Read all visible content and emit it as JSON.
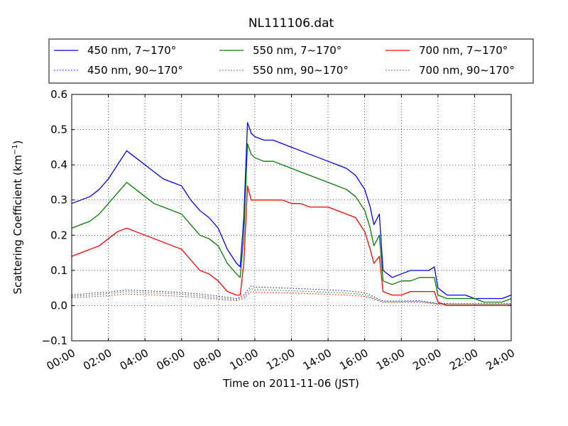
{
  "chart_data": {
    "type": "line",
    "title": "NL111106.dat",
    "xlabel": "Time on 2011-11-06 (JST)",
    "ylabel": "Scattering Coefficient (km",
    "ylabel_sup": "−1",
    "ylabel_close": ")",
    "xlim": [
      0,
      24
    ],
    "ylim": [
      -0.1,
      0.6
    ],
    "grid": true,
    "legend_position": "top",
    "x_ticks": [
      0,
      2,
      4,
      6,
      8,
      10,
      12,
      14,
      16,
      18,
      20,
      22,
      24
    ],
    "x_tick_labels": [
      "00:00",
      "02:00",
      "04:00",
      "06:00",
      "08:00",
      "10:00",
      "12:00",
      "14:00",
      "16:00",
      "18:00",
      "20:00",
      "22:00",
      "24:00"
    ],
    "y_ticks": [
      -0.1,
      0.0,
      0.1,
      0.2,
      0.3,
      0.4,
      0.5,
      0.6
    ],
    "y_tick_labels": [
      "−0.1",
      "0.0",
      "0.1",
      "0.2",
      "0.3",
      "0.4",
      "0.5",
      "0.6"
    ],
    "series": [
      {
        "name": "450 nm, 7∼170°",
        "color": "#0000ff",
        "style": "solid",
        "x": [
          0,
          0.5,
          1,
          1.5,
          2,
          2.5,
          3,
          3.5,
          4,
          4.5,
          5,
          5.5,
          6,
          6.5,
          7,
          7.5,
          8,
          8.5,
          9,
          9.2,
          9.4,
          9.6,
          9.8,
          10,
          10.5,
          11,
          11.5,
          12,
          12.5,
          13,
          13.5,
          14,
          14.5,
          15,
          15.5,
          16,
          16.3,
          16.5,
          16.8,
          17,
          17.5,
          18,
          18.5,
          19,
          19.5,
          19.8,
          20,
          20.5,
          21,
          21.5,
          22,
          22.5,
          23,
          23.5,
          24
        ],
        "y": [
          0.29,
          0.3,
          0.31,
          0.33,
          0.36,
          0.4,
          0.44,
          0.42,
          0.4,
          0.38,
          0.36,
          0.35,
          0.34,
          0.3,
          0.27,
          0.25,
          0.22,
          0.16,
          0.12,
          0.11,
          0.25,
          0.52,
          0.49,
          0.48,
          0.47,
          0.47,
          0.46,
          0.45,
          0.44,
          0.43,
          0.42,
          0.41,
          0.4,
          0.39,
          0.37,
          0.33,
          0.28,
          0.23,
          0.26,
          0.1,
          0.08,
          0.09,
          0.1,
          0.1,
          0.1,
          0.11,
          0.05,
          0.03,
          0.03,
          0.03,
          0.02,
          0.02,
          0.02,
          0.02,
          0.03
        ]
      },
      {
        "name": "550 nm, 7∼170°",
        "color": "#008000",
        "style": "solid",
        "x": [
          0,
          0.5,
          1,
          1.5,
          2,
          2.5,
          3,
          3.5,
          4,
          4.5,
          5,
          5.5,
          6,
          6.5,
          7,
          7.5,
          8,
          8.5,
          9,
          9.2,
          9.4,
          9.6,
          9.8,
          10,
          10.5,
          11,
          11.5,
          12,
          12.5,
          13,
          13.5,
          14,
          14.5,
          15,
          15.5,
          16,
          16.3,
          16.5,
          16.8,
          17,
          17.5,
          18,
          18.5,
          19,
          19.5,
          19.8,
          20,
          20.5,
          21,
          21.5,
          22,
          22.5,
          23,
          23.5,
          24
        ],
        "y": [
          0.22,
          0.23,
          0.24,
          0.26,
          0.29,
          0.32,
          0.35,
          0.33,
          0.31,
          0.29,
          0.28,
          0.27,
          0.26,
          0.23,
          0.2,
          0.19,
          0.17,
          0.12,
          0.09,
          0.08,
          0.2,
          0.46,
          0.43,
          0.42,
          0.41,
          0.41,
          0.4,
          0.39,
          0.38,
          0.37,
          0.36,
          0.35,
          0.34,
          0.33,
          0.31,
          0.27,
          0.22,
          0.17,
          0.2,
          0.07,
          0.06,
          0.07,
          0.07,
          0.08,
          0.08,
          0.08,
          0.03,
          0.02,
          0.02,
          0.02,
          0.02,
          0.01,
          0.01,
          0.01,
          0.02
        ]
      },
      {
        "name": "700 nm, 7∼170°",
        "color": "#ff0000",
        "style": "solid",
        "x": [
          0,
          0.5,
          1,
          1.5,
          2,
          2.5,
          3,
          3.5,
          4,
          4.5,
          5,
          5.5,
          6,
          6.5,
          7,
          7.5,
          8,
          8.5,
          9,
          9.2,
          9.4,
          9.6,
          9.8,
          10,
          10.5,
          11,
          11.5,
          12,
          12.5,
          13,
          13.5,
          14,
          14.5,
          15,
          15.5,
          16,
          16.3,
          16.5,
          16.8,
          17,
          17.5,
          18,
          18.5,
          19,
          19.5,
          19.8,
          20,
          20.5,
          21,
          21.5,
          22,
          22.5,
          23,
          23.5,
          24
        ],
        "y": [
          0.14,
          0.15,
          0.16,
          0.17,
          0.19,
          0.21,
          0.22,
          0.21,
          0.2,
          0.19,
          0.18,
          0.17,
          0.16,
          0.13,
          0.1,
          0.09,
          0.07,
          0.04,
          0.03,
          0.03,
          0.12,
          0.34,
          0.3,
          0.3,
          0.3,
          0.3,
          0.3,
          0.29,
          0.29,
          0.28,
          0.28,
          0.28,
          0.27,
          0.26,
          0.25,
          0.21,
          0.16,
          0.12,
          0.14,
          0.04,
          0.03,
          0.03,
          0.04,
          0.04,
          0.04,
          0.04,
          0.01,
          0.0,
          0.0,
          0.0,
          0.0,
          0.0,
          0.0,
          0.0,
          0.0
        ]
      },
      {
        "name": "450 nm, 90∼170°",
        "color": "#0000ff",
        "style": "dotted",
        "x": [
          0,
          1,
          2,
          3,
          4,
          5,
          6,
          7,
          8,
          9,
          9.4,
          9.8,
          10,
          11,
          12,
          13,
          14,
          15,
          16,
          16.5,
          17,
          18,
          19,
          20,
          21,
          22,
          23,
          24
        ],
        "y": [
          0.03,
          0.035,
          0.038,
          0.045,
          0.042,
          0.04,
          0.037,
          0.033,
          0.027,
          0.02,
          0.03,
          0.056,
          0.053,
          0.051,
          0.049,
          0.047,
          0.045,
          0.042,
          0.037,
          0.025,
          0.013,
          0.013,
          0.014,
          0.006,
          0.005,
          0.005,
          0.005,
          0.005
        ]
      },
      {
        "name": "550 nm, 90∼170°",
        "color": "#008000",
        "style": "dotted",
        "x": [
          0,
          1,
          2,
          3,
          4,
          5,
          6,
          7,
          8,
          9,
          9.4,
          9.8,
          10,
          11,
          12,
          13,
          14,
          15,
          16,
          16.5,
          17,
          18,
          19,
          20,
          21,
          22,
          23,
          24
        ],
        "y": [
          0.026,
          0.03,
          0.034,
          0.04,
          0.037,
          0.035,
          0.032,
          0.028,
          0.022,
          0.017,
          0.025,
          0.048,
          0.045,
          0.044,
          0.042,
          0.04,
          0.038,
          0.036,
          0.031,
          0.021,
          0.011,
          0.011,
          0.012,
          0.005,
          0.004,
          0.004,
          0.004,
          0.004
        ]
      },
      {
        "name": "700 nm, 90∼170°",
        "color": "#ff0000",
        "style": "dotted",
        "x": [
          0,
          1,
          2,
          3,
          4,
          5,
          6,
          7,
          8,
          9,
          9.4,
          9.8,
          10,
          11,
          12,
          13,
          14,
          15,
          16,
          16.5,
          17,
          18,
          19,
          20,
          21,
          22,
          23,
          24
        ],
        "y": [
          0.022,
          0.025,
          0.028,
          0.033,
          0.031,
          0.029,
          0.026,
          0.023,
          0.018,
          0.014,
          0.02,
          0.04,
          0.038,
          0.037,
          0.036,
          0.034,
          0.032,
          0.03,
          0.026,
          0.018,
          0.009,
          0.009,
          0.01,
          0.004,
          0.003,
          0.003,
          0.003,
          0.003
        ]
      }
    ]
  }
}
